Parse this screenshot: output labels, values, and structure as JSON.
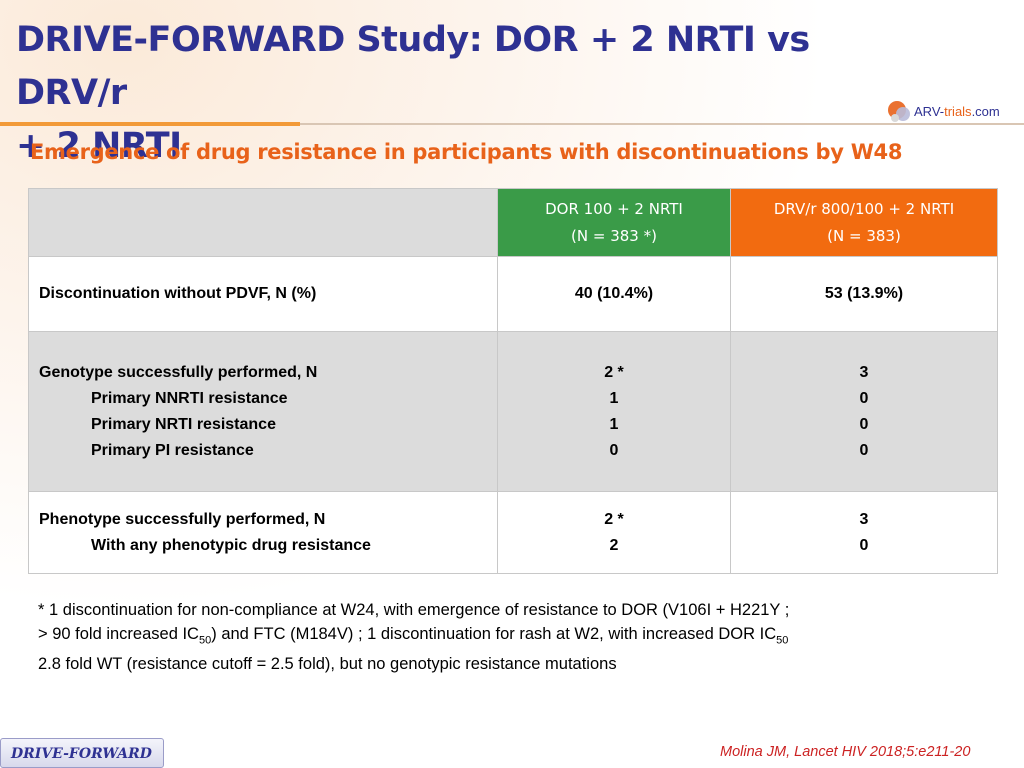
{
  "slide": {
    "title_line1": "DRIVE-FORWARD Study: DOR + 2 NRTI vs DRV/r",
    "title_line2": "+ 2 NRTI",
    "subtitle": "Emergence of drug resistance in participants with discontinuations by W48"
  },
  "logo": {
    "text_part1": "ARV-",
    "text_part2": "trials",
    "text_part3": ".com",
    "icon": "arv-trials-logo-icon",
    "colors": {
      "primary": "#2e3192",
      "accent": "#e8621a"
    }
  },
  "table": {
    "columns": [
      {
        "line1": "DOR 100 + 2 NRTI",
        "line2": "(N = 383 *)",
        "color": "#3a9b48"
      },
      {
        "line1": "DRV/r 800/100 + 2 NRTI",
        "line2": "(N = 383)",
        "color": "#f26b10"
      }
    ],
    "rows": [
      {
        "label": "Discontinuation without PDVF, N (%)",
        "dor": "40 (10.4%)",
        "drv": "53 (13.9%)"
      },
      {
        "label": "Genotype successfully performed, N",
        "sub": [
          "Primary NNRTI resistance",
          "Primary NRTI resistance",
          "Primary PI resistance"
        ],
        "dor": [
          "2 *",
          "1",
          "1",
          "0"
        ],
        "drv": [
          "3",
          "0",
          "0",
          "0"
        ]
      },
      {
        "label": "Phenotype successfully performed, N",
        "sub": [
          "With any phenotypic drug resistance"
        ],
        "dor": [
          "2 *",
          "2"
        ],
        "drv": [
          "3",
          "0"
        ]
      }
    ]
  },
  "footnote": {
    "part1": "* 1 discontinuation for non-compliance at W24, with emergence of resistance to DOR (V106I + H221Y ;",
    "part2a": "> 90 fold increased IC",
    "sub1": "50",
    "part2b": ") and FTC (M184V) ; 1 discontinuation for rash at W2, with increased DOR IC",
    "sub2": "50",
    "part3": "2.8 fold WT (resistance cutoff = 2.5 fold), but no genotypic resistance mutations"
  },
  "footer": {
    "badge": "DRIVE-FORWARD",
    "citation": "Molina JM, Lancet HIV 2018;5:e211-20"
  }
}
